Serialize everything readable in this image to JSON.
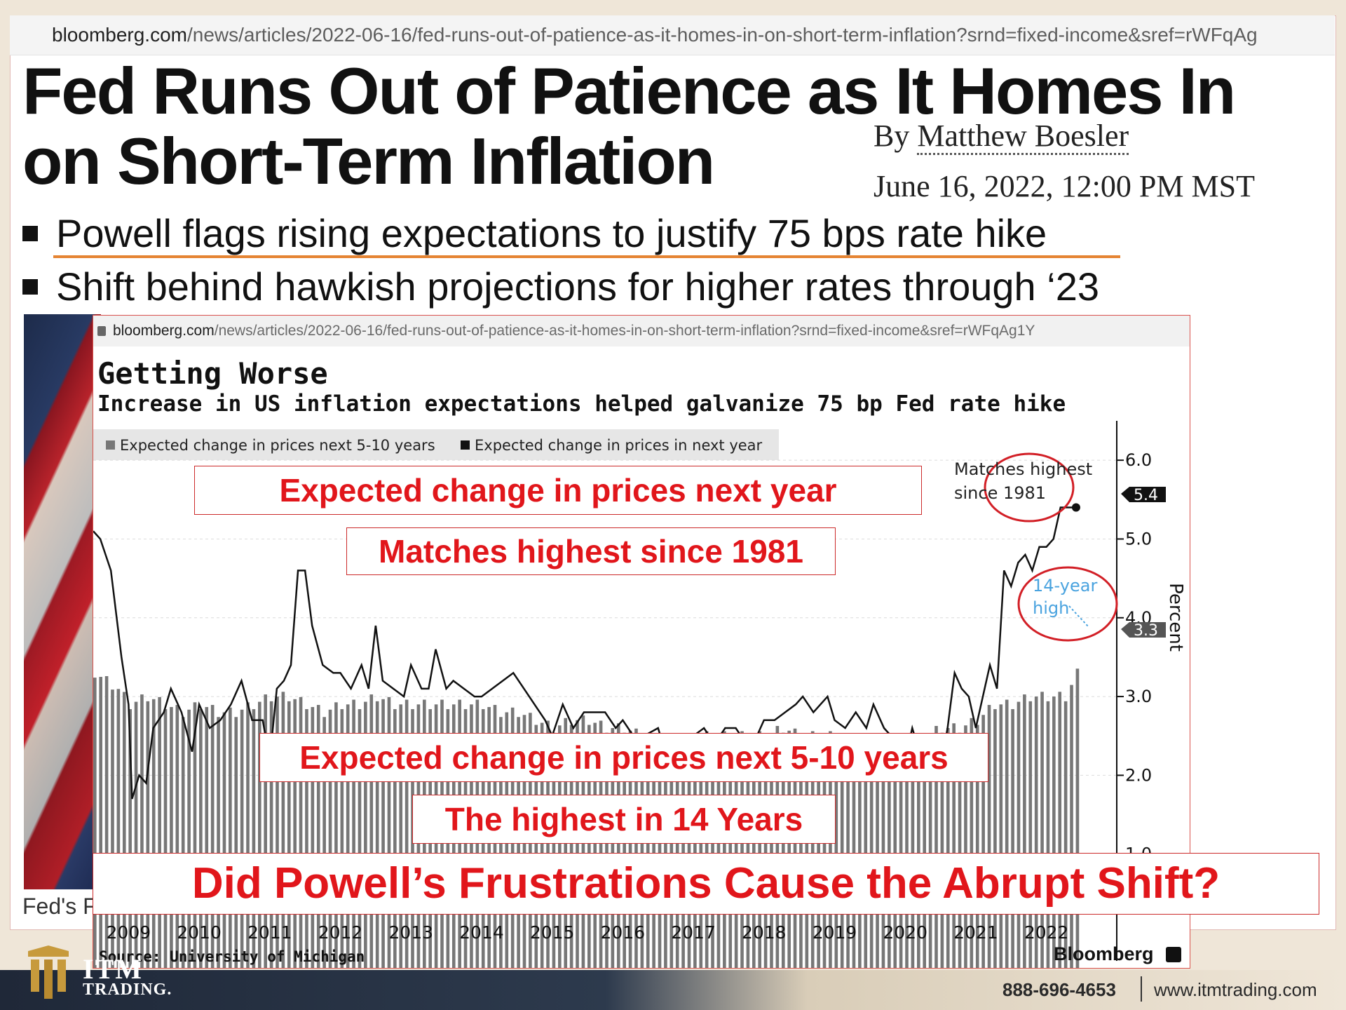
{
  "article": {
    "url_host": "bloomberg.com",
    "url_path": "/news/articles/2022-06-16/fed-runs-out-of-patience-as-it-homes-in-on-short-term-inflation?srnd=fixed-income&sref=rWFqAg",
    "headline_line1": "Fed Runs Out of Patience as It Homes In",
    "headline_line2": "on Short-Term Inflation",
    "byline_prefix": "By",
    "author": "Matthew Boesler",
    "date": "June 16, 2022, 12:00 PM MST",
    "bullets": [
      "Powell flags rising expectations to justify 75 bps rate hike",
      "Shift behind hawkish projections for higher rates through ‘23"
    ],
    "photo_caption": "Fed's F"
  },
  "chart_window": {
    "url_host": "bloomberg.com",
    "url_path": "/news/articles/2022-06-16/fed-runs-out-of-patience-as-it-homes-in-on-short-term-inflation?srnd=fixed-income&sref=rWFqAg1Y"
  },
  "callouts": {
    "next_year": "Expected change in prices next year",
    "matches": "Matches highest since 1981",
    "five_ten": "Expected change in prices next 5-10 years",
    "highest14": "The highest in 14 Years",
    "question": "Did Powell’s Frustrations Cause the Abrupt Shift?"
  },
  "chart_data": {
    "type": "bar",
    "title": "Getting Worse",
    "subtitle": "Increase in US inflation expectations helped galvanize 75 bp Fed rate hike",
    "ylabel": "Percent",
    "ylim": [
      0,
      6.5
    ],
    "yticks": [
      "6.0",
      "5.0",
      "4.0",
      "3.0",
      "2.0",
      "1.0"
    ],
    "x_labels": [
      "2009",
      "2010",
      "2011",
      "2012",
      "2013",
      "2014",
      "2015",
      "2016",
      "2017",
      "2018",
      "2019",
      "2020",
      "2021",
      "2022"
    ],
    "x_range": [
      2008.5,
      2022.5
    ],
    "grid": true,
    "legend_position": "top-left",
    "source": "Source: University of Michigan",
    "brand": "Bloomberg",
    "series": [
      {
        "name": "Expected change in prices next 5-10 years",
        "kind": "bar",
        "color": "#777777",
        "points": [
          [
            2008.5,
            3.3
          ],
          [
            2008.83,
            3.1
          ],
          [
            2009.0,
            2.9
          ],
          [
            2009.25,
            3.0
          ],
          [
            2009.5,
            2.9
          ],
          [
            2009.75,
            2.8
          ],
          [
            2010.0,
            2.9
          ],
          [
            2010.25,
            2.8
          ],
          [
            2010.5,
            2.8
          ],
          [
            2010.75,
            2.9
          ],
          [
            2011.0,
            3.0
          ],
          [
            2011.25,
            3.0
          ],
          [
            2011.5,
            2.9
          ],
          [
            2011.75,
            2.8
          ],
          [
            2012.0,
            2.9
          ],
          [
            2012.25,
            2.9
          ],
          [
            2012.5,
            3.0
          ],
          [
            2012.75,
            2.9
          ],
          [
            2013.0,
            2.9
          ],
          [
            2013.25,
            2.9
          ],
          [
            2013.5,
            2.9
          ],
          [
            2013.75,
            2.9
          ],
          [
            2014.0,
            2.9
          ],
          [
            2014.25,
            2.8
          ],
          [
            2014.5,
            2.8
          ],
          [
            2014.75,
            2.7
          ],
          [
            2015.0,
            2.6
          ],
          [
            2015.25,
            2.7
          ],
          [
            2015.5,
            2.7
          ],
          [
            2015.75,
            2.6
          ],
          [
            2016.0,
            2.6
          ],
          [
            2016.25,
            2.5
          ],
          [
            2016.5,
            2.4
          ],
          [
            2016.75,
            2.4
          ],
          [
            2017.0,
            2.5
          ],
          [
            2017.25,
            2.5
          ],
          [
            2017.5,
            2.5
          ],
          [
            2017.75,
            2.5
          ],
          [
            2018.0,
            2.5
          ],
          [
            2018.25,
            2.6
          ],
          [
            2018.5,
            2.5
          ],
          [
            2018.75,
            2.5
          ],
          [
            2019.0,
            2.5
          ],
          [
            2019.25,
            2.4
          ],
          [
            2019.5,
            2.4
          ],
          [
            2019.75,
            2.3
          ],
          [
            2020.0,
            2.3
          ],
          [
            2020.25,
            2.5
          ],
          [
            2020.5,
            2.6
          ],
          [
            2020.75,
            2.6
          ],
          [
            2021.0,
            2.7
          ],
          [
            2021.25,
            2.9
          ],
          [
            2021.5,
            2.9
          ],
          [
            2021.75,
            3.0
          ],
          [
            2022.0,
            3.0
          ],
          [
            2022.25,
            3.0
          ],
          [
            2022.42,
            3.3
          ]
        ],
        "last_label": "3.3"
      },
      {
        "name": "Expected change in prices in next year",
        "kind": "line",
        "color": "#111111",
        "points": [
          [
            2008.5,
            5.1
          ],
          [
            2008.6,
            5.0
          ],
          [
            2008.75,
            4.6
          ],
          [
            2008.9,
            3.5
          ],
          [
            2009.0,
            2.9
          ],
          [
            2009.05,
            1.7
          ],
          [
            2009.15,
            2.0
          ],
          [
            2009.25,
            1.9
          ],
          [
            2009.35,
            2.6
          ],
          [
            2009.5,
            2.8
          ],
          [
            2009.6,
            3.1
          ],
          [
            2009.75,
            2.8
          ],
          [
            2009.9,
            2.3
          ],
          [
            2010.0,
            2.9
          ],
          [
            2010.15,
            2.6
          ],
          [
            2010.3,
            2.7
          ],
          [
            2010.45,
            2.9
          ],
          [
            2010.6,
            3.2
          ],
          [
            2010.75,
            2.7
          ],
          [
            2010.9,
            2.7
          ],
          [
            2011.0,
            2.2
          ],
          [
            2011.1,
            3.1
          ],
          [
            2011.2,
            3.2
          ],
          [
            2011.3,
            3.4
          ],
          [
            2011.4,
            4.6
          ],
          [
            2011.5,
            4.6
          ],
          [
            2011.6,
            3.9
          ],
          [
            2011.75,
            3.4
          ],
          [
            2011.9,
            3.3
          ],
          [
            2012.0,
            3.3
          ],
          [
            2012.15,
            3.1
          ],
          [
            2012.3,
            3.4
          ],
          [
            2012.4,
            3.1
          ],
          [
            2012.5,
            3.9
          ],
          [
            2012.6,
            3.2
          ],
          [
            2012.75,
            3.1
          ],
          [
            2012.9,
            3.0
          ],
          [
            2013.0,
            3.4
          ],
          [
            2013.15,
            3.1
          ],
          [
            2013.25,
            3.1
          ],
          [
            2013.35,
            3.6
          ],
          [
            2013.5,
            3.1
          ],
          [
            2013.6,
            3.2
          ],
          [
            2013.75,
            3.1
          ],
          [
            2013.9,
            3.0
          ],
          [
            2014.0,
            3.0
          ],
          [
            2014.15,
            3.1
          ],
          [
            2014.3,
            3.2
          ],
          [
            2014.45,
            3.3
          ],
          [
            2014.6,
            3.1
          ],
          [
            2014.75,
            2.9
          ],
          [
            2014.9,
            2.7
          ],
          [
            2015.0,
            2.5
          ],
          [
            2015.15,
            2.9
          ],
          [
            2015.3,
            2.6
          ],
          [
            2015.45,
            2.8
          ],
          [
            2015.6,
            2.8
          ],
          [
            2015.75,
            2.8
          ],
          [
            2015.9,
            2.6
          ],
          [
            2016.0,
            2.7
          ],
          [
            2016.15,
            2.5
          ],
          [
            2016.3,
            2.5
          ],
          [
            2016.5,
            2.6
          ],
          [
            2016.6,
            2.3
          ],
          [
            2016.75,
            2.4
          ],
          [
            2016.9,
            2.2
          ],
          [
            2017.0,
            2.5
          ],
          [
            2017.15,
            2.6
          ],
          [
            2017.3,
            2.4
          ],
          [
            2017.45,
            2.6
          ],
          [
            2017.6,
            2.6
          ],
          [
            2017.75,
            2.4
          ],
          [
            2017.9,
            2.5
          ],
          [
            2018.0,
            2.7
          ],
          [
            2018.15,
            2.7
          ],
          [
            2018.3,
            2.8
          ],
          [
            2018.45,
            2.9
          ],
          [
            2018.55,
            3.0
          ],
          [
            2018.7,
            2.8
          ],
          [
            2018.8,
            2.9
          ],
          [
            2018.9,
            3.0
          ],
          [
            2019.0,
            2.7
          ],
          [
            2019.15,
            2.6
          ],
          [
            2019.3,
            2.8
          ],
          [
            2019.45,
            2.6
          ],
          [
            2019.55,
            2.9
          ],
          [
            2019.7,
            2.6
          ],
          [
            2019.8,
            2.5
          ],
          [
            2019.9,
            2.4
          ],
          [
            2020.0,
            2.2
          ],
          [
            2020.1,
            2.6
          ],
          [
            2020.2,
            2.3
          ],
          [
            2020.3,
            2.2
          ],
          [
            2020.4,
            2.1
          ],
          [
            2020.5,
            2.1
          ],
          [
            2020.6,
            2.6
          ],
          [
            2020.7,
            3.3
          ],
          [
            2020.8,
            3.1
          ],
          [
            2020.9,
            3.0
          ],
          [
            2021.0,
            2.6
          ],
          [
            2021.1,
            3.0
          ],
          [
            2021.2,
            3.4
          ],
          [
            2021.3,
            3.1
          ],
          [
            2021.4,
            4.6
          ],
          [
            2021.5,
            4.4
          ],
          [
            2021.6,
            4.7
          ],
          [
            2021.7,
            4.8
          ],
          [
            2021.8,
            4.6
          ],
          [
            2021.9,
            4.9
          ],
          [
            2022.0,
            4.9
          ],
          [
            2022.1,
            5.0
          ],
          [
            2022.2,
            5.4
          ],
          [
            2022.3,
            5.4
          ],
          [
            2022.42,
            5.4
          ]
        ],
        "last_label": "5.4"
      }
    ],
    "annotations": [
      {
        "text_line1": "Matches highest",
        "text_line2": "since 1981"
      },
      {
        "text_line1": "14-year",
        "text_line2": "high"
      }
    ]
  },
  "footer": {
    "phone": "888-696-4653",
    "website": "www.itmtrading.com",
    "logo_letters": "ITM",
    "logo_sub": "TRADING."
  },
  "colors": {
    "callout_red": "#e1161b",
    "orange_underline": "#e58433",
    "annotation_blue": "#4aa3df"
  }
}
